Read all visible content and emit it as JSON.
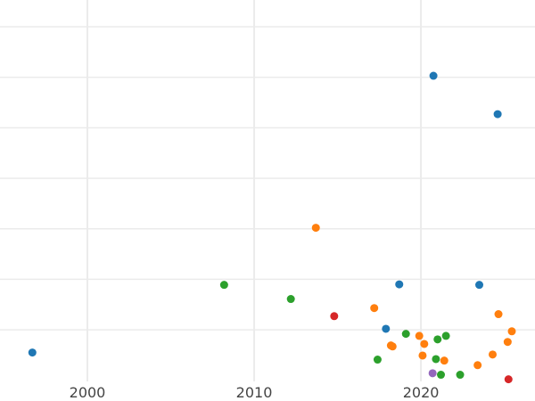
{
  "chart_data": {
    "type": "scatter",
    "title": "",
    "xlabel": "",
    "ylabel": "",
    "xlim": [
      1994.76,
      2026.84
    ],
    "ylim": [
      -0.41,
      7.53
    ],
    "x_ticks": [
      2000,
      2010,
      2020
    ],
    "x_tick_labels": [
      "2000",
      "2010",
      "2020"
    ],
    "y_gridlines": [
      1,
      2,
      3,
      4,
      5,
      6,
      7
    ],
    "grid": true,
    "colors": {
      "blue": "#1f77b4",
      "orange": "#ff7f0e",
      "green": "#2ca02c",
      "red": "#d62728",
      "purple": "#9467bd",
      "grid": "#ebebeb",
      "tick_text": "#444444"
    },
    "series": [
      {
        "name": "blue",
        "color": "#1f77b4",
        "points": [
          [
            1996.7,
            0.55
          ],
          [
            2020.75,
            6.03
          ],
          [
            2024.6,
            5.27
          ],
          [
            2018.7,
            1.9
          ],
          [
            2023.5,
            1.89
          ],
          [
            2017.9,
            1.02
          ]
        ]
      },
      {
        "name": "orange",
        "color": "#ff7f0e",
        "points": [
          [
            2013.7,
            3.02
          ],
          [
            2017.2,
            1.43
          ],
          [
            2024.65,
            1.31
          ],
          [
            2025.45,
            0.97
          ],
          [
            2019.9,
            0.88
          ],
          [
            2020.2,
            0.72
          ],
          [
            2018.2,
            0.69
          ],
          [
            2018.3,
            0.67
          ],
          [
            2025.2,
            0.76
          ],
          [
            2020.1,
            0.49
          ],
          [
            2024.3,
            0.51
          ],
          [
            2021.4,
            0.39
          ],
          [
            2023.4,
            0.3
          ]
        ]
      },
      {
        "name": "green",
        "color": "#2ca02c",
        "points": [
          [
            2008.2,
            1.89
          ],
          [
            2012.2,
            1.61
          ],
          [
            2019.1,
            0.92
          ],
          [
            2021.0,
            0.81
          ],
          [
            2021.5,
            0.88
          ],
          [
            2017.4,
            0.41
          ],
          [
            2020.9,
            0.42
          ],
          [
            2021.2,
            0.11
          ],
          [
            2022.35,
            0.11
          ]
        ]
      },
      {
        "name": "red",
        "color": "#d62728",
        "points": [
          [
            2014.8,
            1.27
          ],
          [
            2025.25,
            0.02
          ]
        ]
      },
      {
        "name": "purple",
        "color": "#9467bd",
        "points": [
          [
            2020.7,
            0.14
          ]
        ]
      }
    ]
  }
}
